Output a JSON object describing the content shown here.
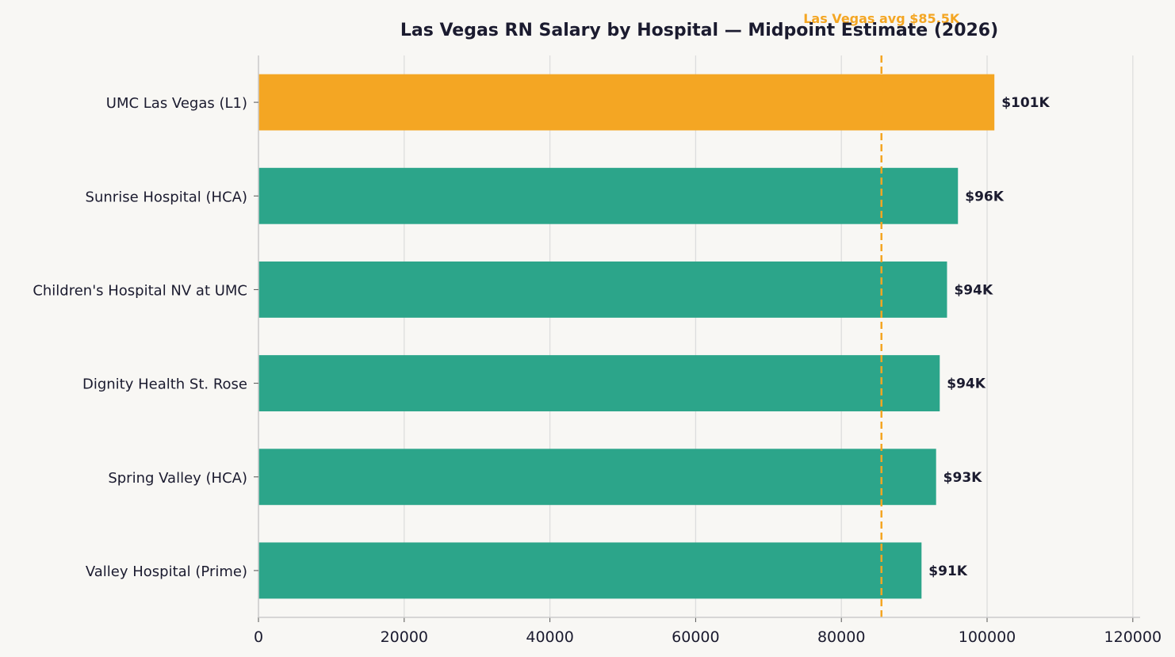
{
  "chart_data": {
    "type": "bar",
    "orientation": "horizontal",
    "title": "Las Vegas RN Salary by Hospital — Midpoint Estimate (2026)",
    "xlabel": "",
    "ylabel": "",
    "categories": [
      "UMC Las Vegas (L1)",
      "Sunrise Hospital (HCA)",
      "Children's Hospital NV at UMC",
      "Dignity Health St. Rose",
      "Spring Valley (HCA)",
      "Valley Hospital (Prime)"
    ],
    "values": [
      101000,
      96000,
      94500,
      93500,
      93000,
      91000
    ],
    "value_labels": [
      "$101K",
      "$96K",
      "$94K",
      "$94K",
      "$93K",
      "$91K"
    ],
    "highlight_index": 0,
    "xlim": [
      0,
      121000
    ],
    "xticks": [
      0,
      20000,
      40000,
      60000,
      80000,
      100000,
      120000
    ],
    "xtick_labels": [
      "0",
      "20000",
      "40000",
      "60000",
      "80000",
      "100000",
      "120000"
    ],
    "grid": "vertical",
    "reference_line": {
      "value": 85500,
      "label": "Las Vegas avg $85.5K",
      "style": "dashed"
    },
    "colors": {
      "bar": "#2ca58a",
      "highlight": "#f4a623",
      "reference": "#f4a623",
      "text": "#1b1b2f",
      "grid": "#dddddd",
      "axis": "#cccccc",
      "background": "#f8f7f4"
    }
  }
}
